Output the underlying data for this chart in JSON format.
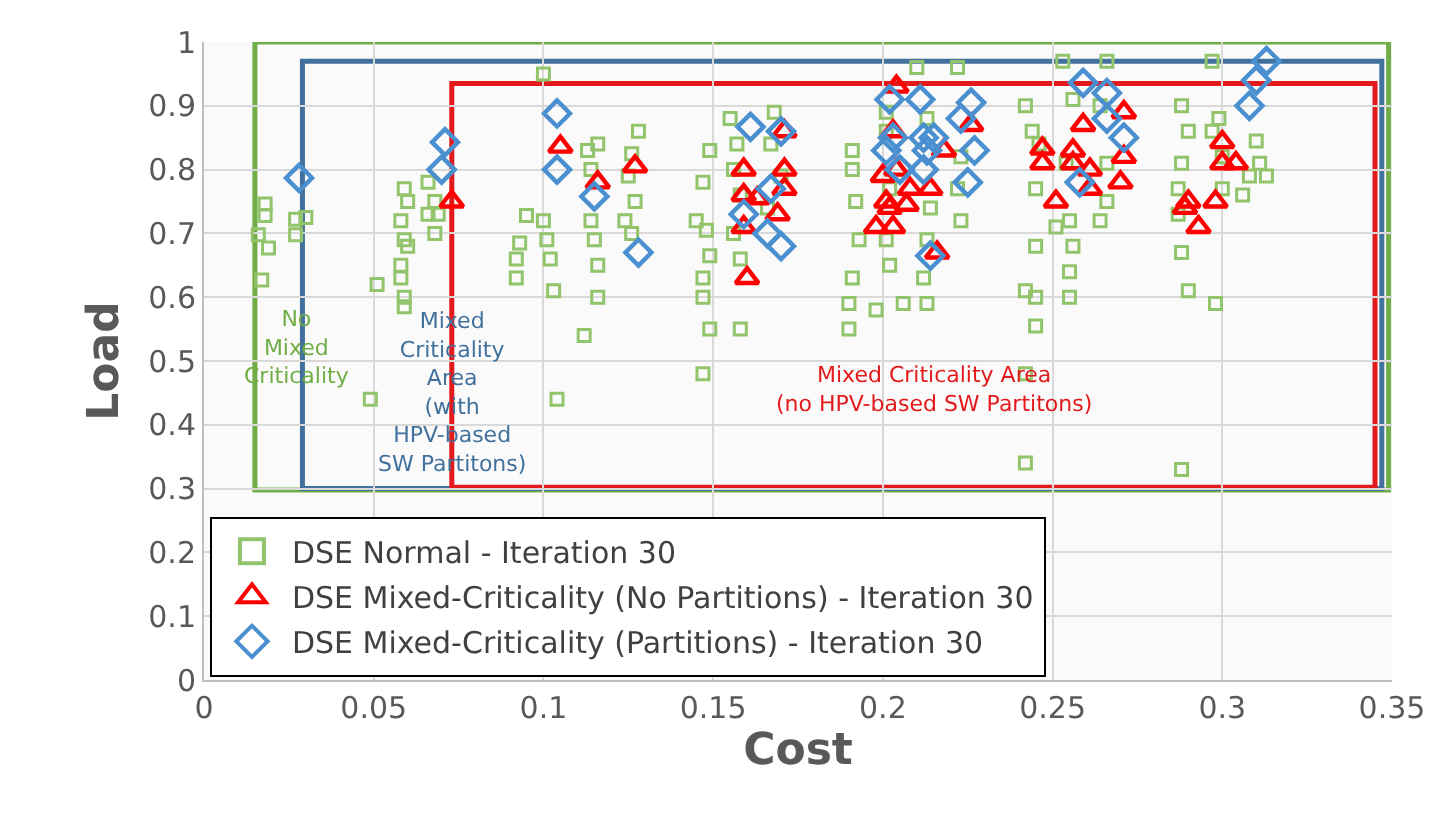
{
  "chart_data": {
    "type": "scatter",
    "xlabel": "Cost",
    "ylabel": "Load",
    "xlim": [
      0,
      0.35
    ],
    "xticks": [
      0,
      0.05,
      0.1,
      0.15,
      0.2,
      0.25,
      0.3,
      0.35
    ],
    "ylim": [
      0,
      1
    ],
    "yticks": [
      0,
      0.1,
      0.2,
      0.3,
      0.4,
      0.5,
      0.6,
      0.7,
      0.8,
      0.9,
      1
    ],
    "grid": true,
    "legend": "bottom",
    "series": [
      {
        "name": "DSE Normal - Iteration 30",
        "marker": "square",
        "color": "#92c46c",
        "x": [
          0.018,
          0.018,
          0.027,
          0.027,
          0.03,
          0.016,
          0.019,
          0.017,
          0.051,
          0.049,
          0.059,
          0.06,
          0.058,
          0.059,
          0.06,
          0.058,
          0.058,
          0.059,
          0.059,
          0.066,
          0.066,
          0.068,
          0.069,
          0.068,
          0.095,
          0.092,
          0.092,
          0.093,
          0.1,
          0.101,
          0.102,
          0.103,
          0.112,
          0.104,
          0.1,
          0.113,
          0.114,
          0.114,
          0.115,
          0.116,
          0.116,
          0.116,
          0.128,
          0.126,
          0.125,
          0.127,
          0.124,
          0.126,
          0.149,
          0.147,
          0.145,
          0.148,
          0.149,
          0.147,
          0.147,
          0.149,
          0.147,
          0.155,
          0.157,
          0.156,
          0.158,
          0.156,
          0.158,
          0.158,
          0.168,
          0.167,
          0.17,
          0.166,
          0.191,
          0.191,
          0.192,
          0.193,
          0.191,
          0.19,
          0.19,
          0.201,
          0.201,
          0.202,
          0.201,
          0.202,
          0.198,
          0.206,
          0.21,
          0.213,
          0.214,
          0.213,
          0.212,
          0.213,
          0.222,
          0.223,
          0.222,
          0.223,
          0.242,
          0.244,
          0.246,
          0.245,
          0.245,
          0.242,
          0.245,
          0.245,
          0.242,
          0.242,
          0.253,
          0.256,
          0.254,
          0.255,
          0.256,
          0.255,
          0.255,
          0.251,
          0.266,
          0.264,
          0.266,
          0.266,
          0.264,
          0.288,
          0.29,
          0.288,
          0.287,
          0.287,
          0.288,
          0.29,
          0.288,
          0.297,
          0.299,
          0.297,
          0.3,
          0.3,
          0.298,
          0.31,
          0.311,
          0.308,
          0.306,
          0.313
        ],
        "values": [
          0.746,
          0.728,
          0.722,
          0.698,
          0.725,
          0.698,
          0.677,
          0.627,
          0.62,
          0.44,
          0.77,
          0.75,
          0.72,
          0.69,
          0.68,
          0.65,
          0.63,
          0.6,
          0.585,
          0.78,
          0.73,
          0.7,
          0.73,
          0.75,
          0.728,
          0.66,
          0.63,
          0.685,
          0.72,
          0.69,
          0.66,
          0.61,
          0.54,
          0.44,
          0.95,
          0.83,
          0.8,
          0.72,
          0.69,
          0.65,
          0.6,
          0.84,
          0.86,
          0.825,
          0.79,
          0.75,
          0.72,
          0.7,
          0.83,
          0.78,
          0.72,
          0.705,
          0.665,
          0.63,
          0.6,
          0.55,
          0.48,
          0.88,
          0.84,
          0.8,
          0.76,
          0.7,
          0.66,
          0.55,
          0.89,
          0.84,
          0.79,
          0.74,
          0.83,
          0.8,
          0.75,
          0.69,
          0.63,
          0.59,
          0.55,
          0.89,
          0.86,
          0.77,
          0.69,
          0.65,
          0.58,
          0.59,
          0.96,
          0.88,
          0.74,
          0.69,
          0.63,
          0.59,
          0.96,
          0.82,
          0.77,
          0.72,
          0.9,
          0.86,
          0.84,
          0.77,
          0.68,
          0.61,
          0.6,
          0.555,
          0.48,
          0.34,
          0.97,
          0.91,
          0.81,
          0.72,
          0.68,
          0.64,
          0.6,
          0.71,
          0.97,
          0.9,
          0.81,
          0.75,
          0.72,
          0.9,
          0.86,
          0.81,
          0.77,
          0.73,
          0.67,
          0.61,
          0.33,
          0.97,
          0.88,
          0.86,
          0.82,
          0.77,
          0.59,
          0.845,
          0.81,
          0.79,
          0.76,
          0.79
        ]
      },
      {
        "name": "DSE Mixed-Criticality (No Partitions) - Iteration 30",
        "marker": "triangle",
        "color": "#ff0000",
        "x": [
          0.073,
          0.105,
          0.116,
          0.127,
          0.159,
          0.159,
          0.163,
          0.159,
          0.16,
          0.171,
          0.171,
          0.171,
          0.169,
          0.204,
          0.203,
          0.2,
          0.204,
          0.201,
          0.202,
          0.198,
          0.203,
          0.208,
          0.207,
          0.214,
          0.218,
          0.216,
          0.226,
          0.247,
          0.247,
          0.251,
          0.259,
          0.256,
          0.256,
          0.261,
          0.261,
          0.271,
          0.271,
          0.27,
          0.29,
          0.293,
          0.289,
          0.3,
          0.3,
          0.304,
          0.298
        ],
        "values": [
          0.75,
          0.836,
          0.78,
          0.805,
          0.8,
          0.76,
          0.755,
          0.71,
          0.63,
          0.86,
          0.8,
          0.77,
          0.73,
          0.93,
          0.86,
          0.79,
          0.8,
          0.75,
          0.74,
          0.71,
          0.71,
          0.77,
          0.745,
          0.77,
          0.83,
          0.67,
          0.87,
          0.833,
          0.81,
          0.75,
          0.87,
          0.83,
          0.81,
          0.8,
          0.77,
          0.89,
          0.82,
          0.78,
          0.75,
          0.71,
          0.74,
          0.843,
          0.81,
          0.81,
          0.75
        ]
      },
      {
        "name": "DSE Mixed-Criticality (Partitions) - Iteration 30",
        "marker": "diamond",
        "color": "#4a8fd0",
        "x": [
          0.028,
          0.071,
          0.07,
          0.104,
          0.104,
          0.115,
          0.128,
          0.161,
          0.159,
          0.17,
          0.167,
          0.166,
          0.17,
          0.202,
          0.201,
          0.203,
          0.205,
          0.211,
          0.212,
          0.213,
          0.212,
          0.215,
          0.214,
          0.226,
          0.223,
          0.227,
          0.225,
          0.259,
          0.258,
          0.266,
          0.266,
          0.271,
          0.313,
          0.31,
          0.308
        ],
        "values": [
          0.787,
          0.843,
          0.8,
          0.888,
          0.8,
          0.758,
          0.67,
          0.867,
          0.73,
          0.86,
          0.77,
          0.7,
          0.68,
          0.91,
          0.83,
          0.85,
          0.8,
          0.91,
          0.85,
          0.83,
          0.8,
          0.85,
          0.665,
          0.905,
          0.88,
          0.83,
          0.78,
          0.936,
          0.78,
          0.92,
          0.88,
          0.85,
          0.97,
          0.94,
          0.9
        ]
      }
    ],
    "annotations": [
      "No\nMixed\nCriticality",
      "Mixed\nCriticality\nArea\n(with\nHPV-based\nSW Partitons)",
      "Mixed Criticality Area\n(no HPV-based SW Partitons)"
    ]
  }
}
